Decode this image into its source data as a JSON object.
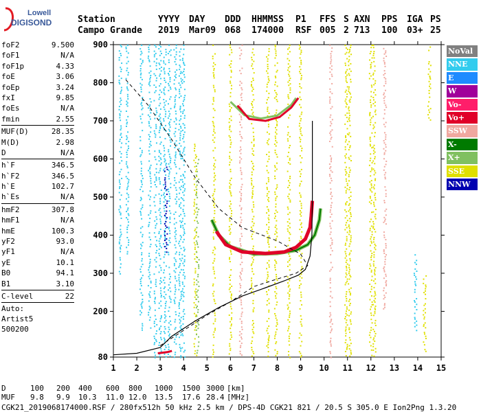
{
  "logo": {
    "top": "Lowell",
    "bottom": "DIGISONDE"
  },
  "header": {
    "row1": [
      "Station",
      "YYYY",
      "DAY",
      "DDD",
      "HHMMSS",
      "P1",
      "FFS",
      "S",
      "AXN",
      "PPS",
      "IGA",
      "PS"
    ],
    "row2": [
      "Campo Grande",
      "2019",
      "Mar09",
      "068",
      "174000",
      "RSF",
      "005",
      "2",
      "713",
      "100",
      "03+",
      "25"
    ]
  },
  "params": {
    "g1": [
      [
        "foF2",
        "9.500"
      ],
      [
        "foF1",
        "N/A"
      ],
      [
        "foF1p",
        "4.33"
      ],
      [
        "foE",
        "3.06"
      ],
      [
        "foEp",
        "3.24"
      ],
      [
        "fxI",
        "9.85"
      ],
      [
        "foEs",
        "N/A"
      ],
      [
        "fmin",
        "2.55"
      ]
    ],
    "g2": [
      [
        "MUF(D)",
        "28.35"
      ],
      [
        "M(D)",
        "2.98"
      ],
      [
        "D",
        "N/A"
      ]
    ],
    "g3": [
      [
        "h`F",
        "346.5"
      ],
      [
        "h`F2",
        "346.5"
      ],
      [
        "h`E",
        "102.7"
      ],
      [
        "h`Es",
        "N/A"
      ]
    ],
    "g4": [
      [
        "hmF2",
        "307.8"
      ],
      [
        "hmF1",
        "N/A"
      ],
      [
        "hmE",
        "100.3"
      ],
      [
        "yF2",
        "93.0"
      ],
      [
        "yF1",
        "N/A"
      ],
      [
        "yE",
        "10.1"
      ],
      [
        "B0",
        "94.1"
      ],
      [
        "B1",
        "3.10"
      ]
    ],
    "g5": [
      [
        "C-level",
        "22"
      ]
    ],
    "auto": [
      "Auto:",
      "Artist5",
      "500200"
    ]
  },
  "legend": [
    {
      "label": "NoVal",
      "color": "#808080"
    },
    {
      "label": "NNE",
      "color": "#33ccee"
    },
    {
      "label": "E",
      "color": "#1e8bff"
    },
    {
      "label": "W",
      "color": "#a0009a"
    },
    {
      "label": "Vo-",
      "color": "#ff1e6a"
    },
    {
      "label": "Vo+",
      "color": "#e00028"
    },
    {
      "label": "SSW",
      "color": "#f0a8a0"
    },
    {
      "label": "X-",
      "color": "#007a00"
    },
    {
      "label": "X+",
      "color": "#80c060"
    },
    {
      "label": "SSE",
      "color": "#e0e000"
    },
    {
      "label": "NNW",
      "color": "#0000b0"
    }
  ],
  "chart_data": {
    "type": "scatter",
    "xlabel": "",
    "ylabel": "",
    "xlim": [
      1,
      15
    ],
    "ylim": [
      80,
      900
    ],
    "xticks": [
      1,
      2,
      3,
      4,
      5,
      6,
      7,
      8,
      9,
      10,
      11,
      12,
      13,
      14,
      15
    ],
    "yticks": [
      80,
      200,
      300,
      400,
      500,
      600,
      700,
      800,
      900
    ],
    "profile_solid": [
      [
        1,
        86
      ],
      [
        2,
        90
      ],
      [
        3,
        105
      ],
      [
        3.5,
        135
      ],
      [
        4.5,
        175
      ],
      [
        5.5,
        210
      ],
      [
        6.5,
        240
      ],
      [
        7.5,
        262
      ],
      [
        8.3,
        280
      ],
      [
        8.9,
        295
      ],
      [
        9.2,
        310
      ],
      [
        9.4,
        345
      ],
      [
        9.48,
        400
      ],
      [
        9.5,
        500
      ],
      [
        9.5,
        700
      ]
    ],
    "profile_dashed": [
      [
        3.0,
        110
      ],
      [
        4.0,
        150
      ],
      [
        5.0,
        190
      ],
      [
        6.0,
        225
      ],
      [
        7.0,
        265
      ],
      [
        8.0,
        285
      ],
      [
        8.8,
        300
      ],
      [
        9.3,
        320
      ],
      [
        9.0,
        350
      ],
      [
        8.0,
        385
      ],
      [
        6.5,
        420
      ],
      [
        5.5,
        470
      ],
      [
        4.5,
        550
      ],
      [
        3.5,
        650
      ],
      [
        2.5,
        740
      ],
      [
        1.5,
        810
      ]
    ],
    "trace_vo_main": [
      [
        5.4,
        410
      ],
      [
        5.8,
        375
      ],
      [
        6.5,
        356
      ],
      [
        7.5,
        352
      ],
      [
        8.3,
        356
      ],
      [
        8.8,
        368
      ],
      [
        9.2,
        390
      ],
      [
        9.4,
        420
      ],
      [
        9.45,
        450
      ],
      [
        9.5,
        490
      ]
    ],
    "trace_x_main": [
      [
        5.2,
        440
      ],
      [
        5.5,
        400
      ],
      [
        6.0,
        370
      ],
      [
        7.0,
        350
      ],
      [
        8.0,
        352
      ],
      [
        8.8,
        360
      ],
      [
        9.3,
        375
      ],
      [
        9.6,
        400
      ],
      [
        9.8,
        440
      ],
      [
        9.85,
        470
      ]
    ],
    "trace_vo_2hop": [
      [
        6.3,
        740
      ],
      [
        6.8,
        705
      ],
      [
        7.5,
        700
      ],
      [
        8.1,
        710
      ],
      [
        8.6,
        735
      ],
      [
        8.9,
        760
      ]
    ],
    "trace_x_2hop": [
      [
        6.0,
        750
      ],
      [
        6.6,
        715
      ],
      [
        7.3,
        706
      ],
      [
        8.0,
        714
      ],
      [
        8.6,
        742
      ],
      [
        8.8,
        760
      ]
    ],
    "trace_es_low": [
      [
        2.9,
        90
      ],
      [
        3.3,
        93
      ],
      [
        3.5,
        96
      ]
    ],
    "vertical_bands": [
      {
        "x": 2.2,
        "ymin": 150,
        "ymax": 900,
        "series": "NNE"
      },
      {
        "x": 2.55,
        "ymin": 150,
        "ymax": 900,
        "series": "NNE"
      },
      {
        "x": 2.8,
        "ymin": 80,
        "ymax": 900,
        "series": "NNE"
      },
      {
        "x": 3.0,
        "ymin": 80,
        "ymax": 900,
        "series": "NNE"
      },
      {
        "x": 3.2,
        "ymin": 80,
        "ymax": 900,
        "series": "NNE"
      },
      {
        "x": 3.4,
        "ymin": 80,
        "ymax": 900,
        "series": "NNE"
      },
      {
        "x": 3.65,
        "ymin": 80,
        "ymax": 900,
        "series": "NNE"
      },
      {
        "x": 3.85,
        "ymin": 80,
        "ymax": 900,
        "series": "NNE"
      },
      {
        "x": 4.0,
        "ymin": 80,
        "ymax": 900,
        "series": "NNE"
      },
      {
        "x": 3.25,
        "ymin": 350,
        "ymax": 580,
        "series": "NNW"
      },
      {
        "x": 1.3,
        "ymin": 300,
        "ymax": 900,
        "series": "NNE"
      },
      {
        "x": 1.6,
        "ymin": 350,
        "ymax": 900,
        "series": "NNE"
      },
      {
        "x": 4.5,
        "ymin": 80,
        "ymax": 640,
        "series": "SSE"
      },
      {
        "x": 4.6,
        "ymin": 80,
        "ymax": 600,
        "series": "X+"
      },
      {
        "x": 5.3,
        "ymin": 80,
        "ymax": 900,
        "series": "SSE"
      },
      {
        "x": 6.0,
        "ymin": 80,
        "ymax": 900,
        "series": "SSE"
      },
      {
        "x": 6.45,
        "ymin": 80,
        "ymax": 900,
        "series": "SSW"
      },
      {
        "x": 6.95,
        "ymin": 80,
        "ymax": 900,
        "series": "SSE"
      },
      {
        "x": 7.6,
        "ymin": 80,
        "ymax": 900,
        "series": "SSE"
      },
      {
        "x": 7.95,
        "ymin": 80,
        "ymax": 900,
        "series": "SSE"
      },
      {
        "x": 8.5,
        "ymin": 80,
        "ymax": 900,
        "series": "SSE"
      },
      {
        "x": 9.0,
        "ymin": 80,
        "ymax": 900,
        "series": "SSE"
      },
      {
        "x": 10.3,
        "ymin": 80,
        "ymax": 900,
        "series": "SSW"
      },
      {
        "x": 10.95,
        "ymin": 80,
        "ymax": 900,
        "series": "SSE"
      },
      {
        "x": 11.1,
        "ymin": 80,
        "ymax": 900,
        "series": "SSE"
      },
      {
        "x": 12.0,
        "ymin": 80,
        "ymax": 900,
        "series": "SSE"
      },
      {
        "x": 12.15,
        "ymin": 80,
        "ymax": 900,
        "series": "SSE"
      },
      {
        "x": 12.6,
        "ymin": 200,
        "ymax": 900,
        "series": "SSW"
      },
      {
        "x": 13.9,
        "ymin": 150,
        "ymax": 350,
        "series": "NNE"
      },
      {
        "x": 14.3,
        "ymin": 80,
        "ymax": 300,
        "series": "SSE"
      },
      {
        "x": 14.5,
        "ymin": 700,
        "ymax": 900,
        "series": "SSE"
      }
    ]
  },
  "footer": {
    "drow_label": "D",
    "mrow_label": "MUF",
    "D": [
      "100",
      "200",
      "400",
      "600",
      "800",
      "1000",
      "1500",
      "3000"
    ],
    "D_unit": "[km]",
    "MUF": [
      "9.8",
      "9.9",
      "10.3",
      "11.0",
      "12.0",
      "13.5",
      "17.6",
      "28.4"
    ],
    "MUF_unit": "[MHz]",
    "info": "CGK21_2019068174000.RSF / 280fx512h 50 kHz 2.5 km / DPS-4D CGK21 821 / 20.5 S 305.0 E Ion2Png 1.3.20"
  }
}
